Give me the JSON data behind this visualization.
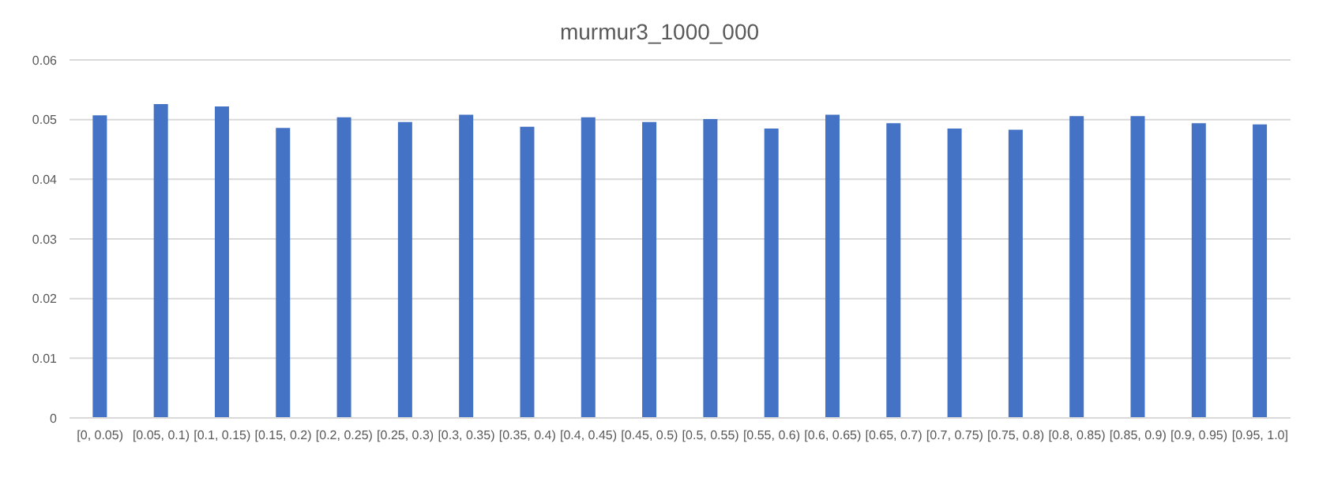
{
  "chart_data": {
    "type": "bar",
    "title": "murmur3_1000_000",
    "categories": [
      "[0, 0.05)",
      "[0.05, 0.1)",
      "[0.1, 0.15)",
      "[0.15, 0.2)",
      "[0.2, 0.25)",
      "[0.25, 0.3)",
      "[0.3, 0.35)",
      "[0.35, 0.4)",
      "[0.4, 0.45)",
      "[0.45, 0.5)",
      "[0.5, 0.55)",
      "[0.55, 0.6)",
      "[0.6, 0.65)",
      "[0.65, 0.7)",
      "[0.7, 0.75)",
      "[0.75, 0.8)",
      "[0.8, 0.85)",
      "[0.85, 0.9)",
      "[0.9, 0.95)",
      "[0.95, 1.0]"
    ],
    "values": [
      0.0507,
      0.0526,
      0.0522,
      0.0486,
      0.0504,
      0.0496,
      0.0508,
      0.0488,
      0.0504,
      0.0496,
      0.0501,
      0.0485,
      0.0508,
      0.0494,
      0.0485,
      0.0483,
      0.0506,
      0.0506,
      0.0494,
      0.0492
    ],
    "color": "#4472c4",
    "ylim": [
      0,
      0.06
    ],
    "yticks": [
      0,
      0.01,
      0.02,
      0.03,
      0.04,
      0.05,
      0.06
    ],
    "grid": "y"
  }
}
